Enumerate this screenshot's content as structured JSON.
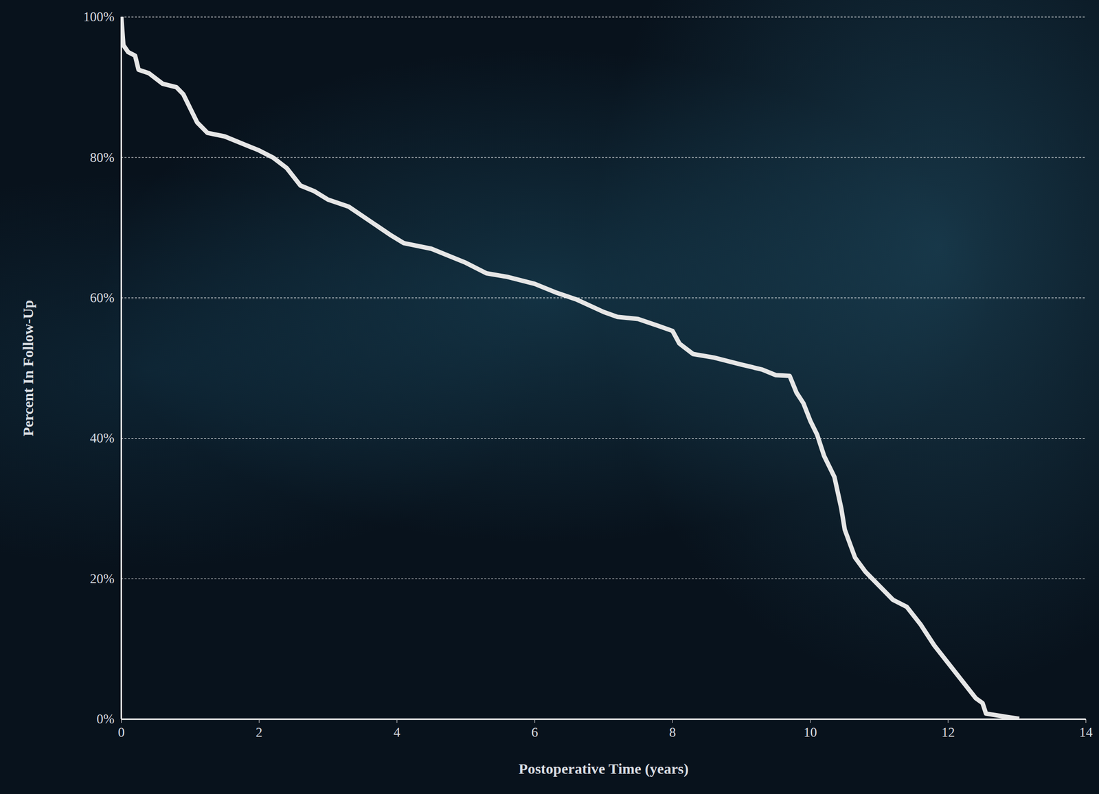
{
  "chart_data": {
    "type": "line",
    "xlabel": "Postoperative Time (years)",
    "ylabel": "Percent In Follow-Up",
    "x": [
      0,
      0.03,
      0.1,
      0.2,
      0.25,
      0.4,
      0.6,
      0.8,
      0.9,
      1.0,
      1.1,
      1.25,
      1.5,
      1.8,
      2.0,
      2.2,
      2.4,
      2.6,
      2.8,
      3.0,
      3.3,
      3.6,
      3.9,
      4.1,
      4.5,
      5.0,
      5.3,
      5.6,
      6.0,
      6.3,
      6.6,
      7.0,
      7.2,
      7.5,
      7.8,
      8.0,
      8.1,
      8.3,
      8.6,
      9.0,
      9.3,
      9.5,
      9.7,
      9.8,
      9.9,
      10.0,
      10.1,
      10.2,
      10.35,
      10.45,
      10.5,
      10.65,
      10.8,
      11.0,
      11.2,
      11.4,
      11.6,
      11.8,
      12.0,
      12.2,
      12.4,
      12.5,
      12.55,
      12.8,
      13.0
    ],
    "values": [
      100,
      96,
      95,
      94.5,
      92.5,
      92,
      90.5,
      90,
      89,
      87,
      85,
      83.5,
      83,
      81.8,
      81,
      80,
      78.5,
      76,
      75.2,
      74,
      73,
      71,
      69,
      67.8,
      67,
      65,
      63.5,
      63,
      62,
      60.8,
      59.8,
      58,
      57.3,
      57,
      56,
      55.3,
      53.5,
      52,
      51.5,
      50.5,
      49.8,
      49,
      48.9,
      46.5,
      45,
      42.5,
      40.5,
      37.5,
      34.5,
      30,
      27,
      23,
      21,
      19,
      17,
      16,
      13.5,
      10.5,
      8,
      5.5,
      3,
      2.3,
      0.8,
      0.4,
      0.1
    ],
    "color": "#e6e6e6",
    "xlim": [
      0,
      14
    ],
    "xticks": [
      0,
      2,
      4,
      6,
      8,
      10,
      12,
      14
    ],
    "ylim": [
      0,
      100
    ],
    "yticks": [
      {
        "value": 0,
        "label": "0%"
      },
      {
        "value": 20,
        "label": "20%"
      },
      {
        "value": 40,
        "label": "40%"
      },
      {
        "value": 60,
        "label": "60%"
      },
      {
        "value": 80,
        "label": "80%"
      },
      {
        "value": 100,
        "label": "100%"
      }
    ],
    "grid": true
  }
}
